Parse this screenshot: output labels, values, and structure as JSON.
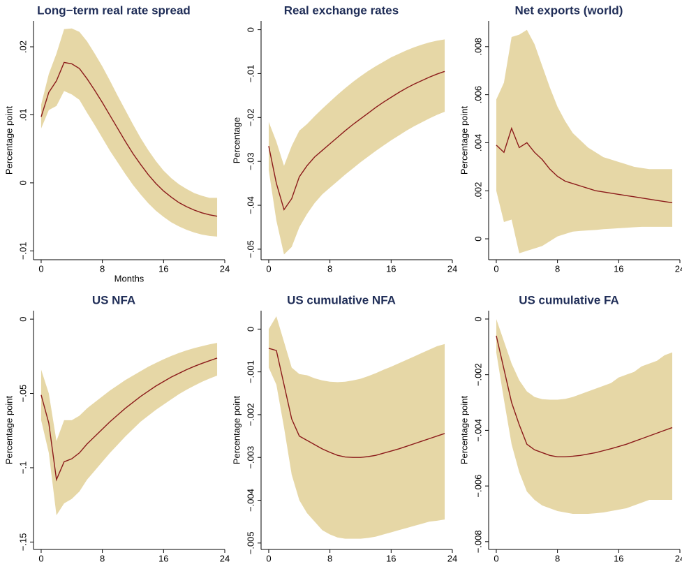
{
  "chart_data": [
    {
      "type": "line",
      "title": "Long−term real rate spread",
      "ylabel": "Percentage point",
      "xlabel": "Months",
      "x": [
        0,
        1,
        2,
        3,
        4,
        5,
        6,
        7,
        8,
        9,
        10,
        11,
        12,
        13,
        14,
        15,
        16,
        17,
        18,
        19,
        20,
        21,
        22,
        23
      ],
      "values": [
        0.0097,
        0.0133,
        0.015,
        0.0177,
        0.0175,
        0.0168,
        0.0153,
        0.0136,
        0.0118,
        0.0099,
        0.008,
        0.0061,
        0.0043,
        0.0027,
        0.0012,
        -0.0001,
        -0.0012,
        -0.0021,
        -0.0029,
        -0.0035,
        -0.004,
        -0.0044,
        -0.0047,
        -0.0049
      ],
      "upper": [
        0.0115,
        0.016,
        0.019,
        0.0226,
        0.0227,
        0.0222,
        0.0208,
        0.019,
        0.0171,
        0.015,
        0.0128,
        0.0107,
        0.0086,
        0.0066,
        0.0048,
        0.0032,
        0.0018,
        0.0007,
        -0.0002,
        -0.0009,
        -0.0015,
        -0.0019,
        -0.0022,
        -0.0022
      ],
      "lower": [
        0.008,
        0.0107,
        0.0113,
        0.0135,
        0.013,
        0.0122,
        0.0103,
        0.0085,
        0.0066,
        0.0047,
        0.003,
        0.0013,
        -0.0003,
        -0.0017,
        -0.003,
        -0.0041,
        -0.005,
        -0.0058,
        -0.0064,
        -0.0069,
        -0.0073,
        -0.0076,
        -0.0078,
        -0.0079
      ],
      "line_color": "#8b1a1a",
      "band_color": "#e6d7a6",
      "xlim": [
        -1,
        24
      ],
      "xticks": [
        0,
        8,
        16,
        24
      ],
      "ylim": [
        -0.0113,
        0.0238
      ],
      "yticks": [
        {
          "value": -0.01,
          "label": "−.01"
        },
        0,
        {
          "value": 0.01,
          "label": ".01"
        },
        {
          "value": 0.02,
          "label": ".02"
        }
      ]
    },
    {
      "type": "line",
      "title": "Real exchange rates",
      "ylabel": "Percentage",
      "x": [
        0,
        1,
        2,
        3,
        4,
        5,
        6,
        7,
        8,
        9,
        10,
        11,
        12,
        13,
        14,
        15,
        16,
        17,
        18,
        19,
        20,
        21,
        22,
        23
      ],
      "values": [
        -0.0265,
        -0.035,
        -0.041,
        -0.0385,
        -0.0335,
        -0.031,
        -0.029,
        -0.0275,
        -0.026,
        -0.0245,
        -0.023,
        -0.0216,
        -0.0203,
        -0.019,
        -0.0177,
        -0.0165,
        -0.0154,
        -0.0143,
        -0.0133,
        -0.0124,
        -0.0116,
        -0.0108,
        -0.0101,
        -0.0095
      ],
      "upper": [
        -0.021,
        -0.0255,
        -0.031,
        -0.0265,
        -0.023,
        -0.0215,
        -0.0197,
        -0.018,
        -0.0164,
        -0.0148,
        -0.0133,
        -0.0119,
        -0.0106,
        -0.0094,
        -0.0083,
        -0.0073,
        -0.0063,
        -0.0055,
        -0.0047,
        -0.004,
        -0.0034,
        -0.0029,
        -0.0025,
        -0.0022
      ],
      "lower": [
        -0.032,
        -0.0435,
        -0.0512,
        -0.0495,
        -0.045,
        -0.042,
        -0.0395,
        -0.0375,
        -0.036,
        -0.0345,
        -0.033,
        -0.0316,
        -0.0302,
        -0.0289,
        -0.0276,
        -0.0264,
        -0.0252,
        -0.0241,
        -0.023,
        -0.022,
        -0.0211,
        -0.0202,
        -0.0194,
        -0.0187
      ],
      "line_color": "#8b1a1a",
      "band_color": "#e6d7a6",
      "xlim": [
        -1,
        24
      ],
      "xticks": [
        0,
        8,
        16,
        24
      ],
      "ylim": [
        -0.0524,
        0.002
      ],
      "yticks": [
        {
          "value": -0.05,
          "label": "−.05"
        },
        {
          "value": -0.04,
          "label": "−.04"
        },
        {
          "value": -0.03,
          "label": "−.03"
        },
        {
          "value": -0.02,
          "label": "−.02"
        },
        {
          "value": -0.01,
          "label": "−.01"
        },
        0
      ]
    },
    {
      "type": "line",
      "title": "Net exports (world)",
      "ylabel": "Percentage point",
      "x": [
        0,
        1,
        2,
        3,
        4,
        5,
        6,
        7,
        8,
        9,
        10,
        11,
        12,
        13,
        14,
        15,
        16,
        17,
        18,
        19,
        20,
        21,
        22,
        23
      ],
      "values": [
        0.0039,
        0.0036,
        0.0046,
        0.0038,
        0.004,
        0.0036,
        0.0033,
        0.0029,
        0.0026,
        0.0024,
        0.0023,
        0.0022,
        0.0021,
        0.002,
        0.00195,
        0.0019,
        0.00185,
        0.0018,
        0.00175,
        0.0017,
        0.00165,
        0.0016,
        0.00155,
        0.0015
      ],
      "upper": [
        0.0058,
        0.0065,
        0.0084,
        0.0085,
        0.0087,
        0.0081,
        0.0072,
        0.0063,
        0.0055,
        0.0049,
        0.0044,
        0.0041,
        0.0038,
        0.0036,
        0.0034,
        0.0033,
        0.0032,
        0.0031,
        0.003,
        0.00295,
        0.0029,
        0.0029,
        0.0029,
        0.0029
      ],
      "lower": [
        0.002,
        0.0007,
        0.0008,
        -0.0006,
        -0.0005,
        -0.0004,
        -0.0003,
        -0.0001,
        0.0001,
        0.0002,
        0.0003,
        0.00033,
        0.00035,
        0.00037,
        0.0004,
        0.00042,
        0.00044,
        0.00046,
        0.00048,
        0.0005,
        0.0005,
        0.0005,
        0.0005,
        0.0005
      ],
      "line_color": "#8b1a1a",
      "band_color": "#e6d7a6",
      "xlim": [
        -1,
        24
      ],
      "xticks": [
        0,
        8,
        16,
        24
      ],
      "ylim": [
        -0.00087,
        0.00907
      ],
      "yticks": [
        0,
        {
          "value": 0.002,
          "label": ".002"
        },
        {
          "value": 0.004,
          "label": ".004"
        },
        {
          "value": 0.006,
          "label": ".006"
        },
        {
          "value": 0.008,
          "label": ".008"
        }
      ]
    },
    {
      "type": "line",
      "title": "US NFA",
      "ylabel": "Percentage point",
      "x": [
        0,
        1,
        2,
        3,
        4,
        5,
        6,
        7,
        8,
        9,
        10,
        11,
        12,
        13,
        14,
        15,
        16,
        17,
        18,
        19,
        20,
        21,
        22,
        23
      ],
      "values": [
        -0.051,
        -0.07,
        -0.108,
        -0.096,
        -0.094,
        -0.09,
        -0.084,
        -0.079,
        -0.074,
        -0.069,
        -0.0645,
        -0.06,
        -0.056,
        -0.052,
        -0.0485,
        -0.045,
        -0.042,
        -0.039,
        -0.0365,
        -0.034,
        -0.0318,
        -0.0298,
        -0.028,
        -0.0262
      ],
      "upper": [
        -0.034,
        -0.05,
        -0.082,
        -0.068,
        -0.068,
        -0.065,
        -0.06,
        -0.056,
        -0.052,
        -0.048,
        -0.0445,
        -0.041,
        -0.038,
        -0.035,
        -0.032,
        -0.0295,
        -0.027,
        -0.0248,
        -0.0228,
        -0.021,
        -0.0195,
        -0.0182,
        -0.017,
        -0.016
      ],
      "lower": [
        -0.068,
        -0.09,
        -0.132,
        -0.124,
        -0.121,
        -0.116,
        -0.108,
        -0.102,
        -0.096,
        -0.09,
        -0.0845,
        -0.079,
        -0.074,
        -0.069,
        -0.065,
        -0.061,
        -0.0575,
        -0.054,
        -0.0505,
        -0.0475,
        -0.0448,
        -0.0422,
        -0.04,
        -0.038
      ],
      "line_color": "#8b1a1a",
      "band_color": "#e6d7a6",
      "xlim": [
        -1,
        24
      ],
      "xticks": [
        0,
        8,
        16,
        24
      ],
      "ylim": [
        -0.155,
        0.0057
      ],
      "yticks": [
        {
          "value": -0.15,
          "label": "−.15"
        },
        {
          "value": -0.1,
          "label": "−.1"
        },
        {
          "value": -0.05,
          "label": "−.05"
        },
        0
      ]
    },
    {
      "type": "line",
      "title": "US cumulative NFA",
      "ylabel": "Percentage point",
      "x": [
        0,
        1,
        2,
        3,
        4,
        5,
        6,
        7,
        8,
        9,
        10,
        11,
        12,
        13,
        14,
        15,
        16,
        17,
        18,
        19,
        20,
        21,
        22,
        23
      ],
      "values": [
        -0.00045,
        -0.0005,
        -0.0013,
        -0.0021,
        -0.0025,
        -0.0026,
        -0.0027,
        -0.0028,
        -0.00288,
        -0.00295,
        -0.00299,
        -0.003,
        -0.003,
        -0.00298,
        -0.00295,
        -0.0029,
        -0.00285,
        -0.0028,
        -0.00274,
        -0.00268,
        -0.00262,
        -0.00256,
        -0.0025,
        -0.00244
      ],
      "upper": [
        0,
        0.0003,
        -0.0003,
        -0.0009,
        -0.00105,
        -0.00108,
        -0.00115,
        -0.0012,
        -0.00123,
        -0.00124,
        -0.00123,
        -0.0012,
        -0.00116,
        -0.0011,
        -0.00103,
        -0.00095,
        -0.00088,
        -0.0008,
        -0.00072,
        -0.00064,
        -0.00056,
        -0.00048,
        -0.0004,
        -0.00035
      ],
      "lower": [
        -0.0009,
        -0.0013,
        -0.0023,
        -0.0034,
        -0.004,
        -0.0043,
        -0.0045,
        -0.0047,
        -0.0048,
        -0.00487,
        -0.0049,
        -0.0049,
        -0.0049,
        -0.00488,
        -0.00485,
        -0.0048,
        -0.00475,
        -0.0047,
        -0.00465,
        -0.0046,
        -0.00455,
        -0.0045,
        -0.00448,
        -0.00445
      ],
      "line_color": "#8b1a1a",
      "band_color": "#e6d7a6",
      "xlim": [
        -1,
        24
      ],
      "xticks": [
        0,
        8,
        16,
        24
      ],
      "ylim": [
        -0.00515,
        0.00043
      ],
      "yticks": [
        {
          "value": -0.005,
          "label": "−.005"
        },
        {
          "value": -0.004,
          "label": "−.004"
        },
        {
          "value": -0.003,
          "label": "−.003"
        },
        {
          "value": -0.002,
          "label": "−.002"
        },
        {
          "value": -0.001,
          "label": "−.001"
        },
        0
      ]
    },
    {
      "type": "line",
      "title": "US cumulative FA",
      "ylabel": "Percentage point",
      "x": [
        0,
        1,
        2,
        3,
        4,
        5,
        6,
        7,
        8,
        9,
        10,
        11,
        12,
        13,
        14,
        15,
        16,
        17,
        18,
        19,
        20,
        21,
        22,
        23
      ],
      "values": [
        -0.0006,
        -0.0018,
        -0.003,
        -0.0038,
        -0.0045,
        -0.0047,
        -0.0048,
        -0.0049,
        -0.00495,
        -0.00495,
        -0.00493,
        -0.0049,
        -0.00485,
        -0.0048,
        -0.00473,
        -0.00466,
        -0.00458,
        -0.0045,
        -0.0044,
        -0.0043,
        -0.0042,
        -0.0041,
        -0.004,
        -0.0039
      ],
      "upper": [
        0,
        -0.0008,
        -0.0016,
        -0.0022,
        -0.0026,
        -0.0028,
        -0.00288,
        -0.0029,
        -0.0029,
        -0.00287,
        -0.0028,
        -0.0027,
        -0.0026,
        -0.0025,
        -0.0024,
        -0.0023,
        -0.0021,
        -0.002,
        -0.0019,
        -0.0017,
        -0.0016,
        -0.0015,
        -0.0013,
        -0.0012
      ],
      "lower": [
        -0.0012,
        -0.0029,
        -0.0045,
        -0.0055,
        -0.0062,
        -0.0065,
        -0.0067,
        -0.0068,
        -0.0069,
        -0.00695,
        -0.007,
        -0.007,
        -0.007,
        -0.00698,
        -0.00695,
        -0.0069,
        -0.00685,
        -0.0068,
        -0.0067,
        -0.0066,
        -0.0065,
        -0.0065,
        -0.0065,
        -0.0065
      ],
      "line_color": "#8b1a1a",
      "band_color": "#e6d7a6",
      "xlim": [
        -1,
        24
      ],
      "xticks": [
        0,
        8,
        16,
        24
      ],
      "ylim": [
        -0.00828,
        0.0003
      ],
      "yticks": [
        {
          "value": -0.008,
          "label": "−.008"
        },
        {
          "value": -0.006,
          "label": "−.006"
        },
        {
          "value": -0.004,
          "label": "−.004"
        },
        {
          "value": -0.002,
          "label": "−.002"
        },
        0
      ]
    }
  ]
}
